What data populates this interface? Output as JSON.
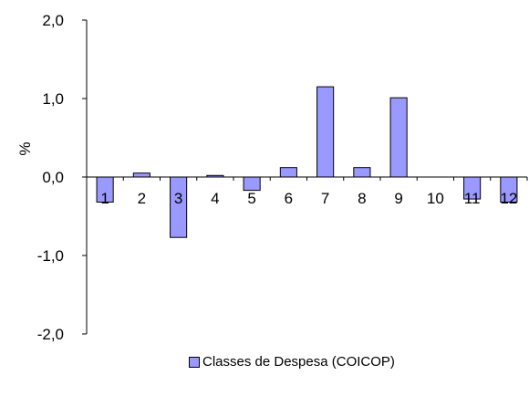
{
  "chart_data": {
    "type": "bar",
    "categories": [
      "1",
      "2",
      "3",
      "4",
      "5",
      "6",
      "7",
      "8",
      "9",
      "10",
      "11",
      "12"
    ],
    "series": [
      {
        "name": "Classes de Despesa (COICOP)",
        "values": [
          -0.32,
          0.05,
          -0.77,
          0.02,
          -0.17,
          0.12,
          1.15,
          0.12,
          1.01,
          0.0,
          -0.28,
          -0.32
        ],
        "color": "#9999ff"
      }
    ],
    "ylabel": "%",
    "xlabel": "",
    "ylim": [
      -2.0,
      2.0
    ],
    "yticks": [
      "-2,0",
      "-1,0",
      "0,0",
      "1,0",
      "2,0"
    ],
    "grid": false,
    "legend_position": "bottom"
  }
}
